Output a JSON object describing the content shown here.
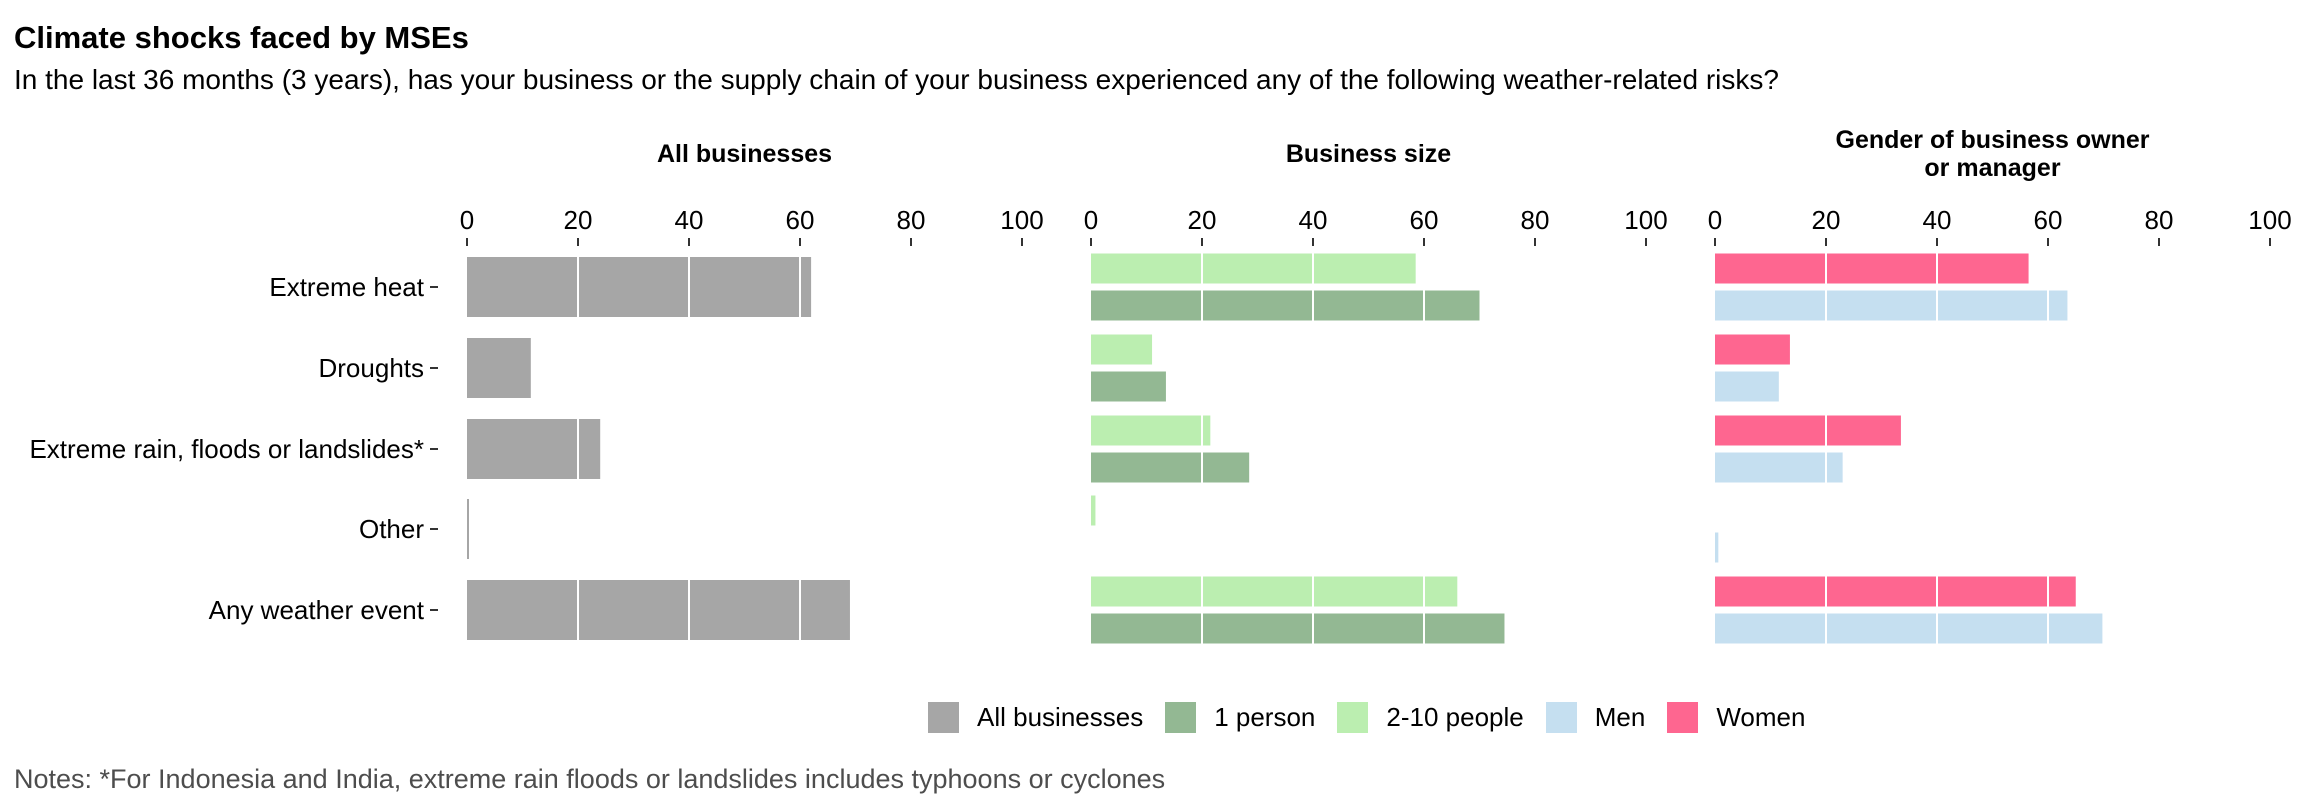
{
  "title": "Climate shocks faced by MSEs",
  "subtitle": "In the last 36 months (3 years), has your business or the supply chain of your business experienced any of the following weather-related risks?",
  "notes": "Notes: *For Indonesia and India, extreme rain floods or landslides includes typhoons or cyclones",
  "legend": [
    {
      "label": "All businesses",
      "color": "#a6a6a6"
    },
    {
      "label": "1 person",
      "color": "#93b893"
    },
    {
      "label": "2-10 people",
      "color": "#bbeeb0"
    },
    {
      "label": "Men",
      "color": "#c5dff0"
    },
    {
      "label": "Women",
      "color": "#fe6690"
    }
  ],
  "chart_data": [
    {
      "type": "bar",
      "orientation": "horizontal",
      "title": "All businesses",
      "categories": [
        "Extreme heat",
        "Droughts",
        "Extreme rain, floods or landslides*",
        "Other",
        "Any weather event"
      ],
      "xlim": [
        0,
        100
      ],
      "xticks": [
        0,
        20,
        40,
        60,
        80,
        100
      ],
      "grid": true,
      "series": [
        {
          "name": "All businesses",
          "color": "#a6a6a6",
          "values": [
            62,
            11.5,
            24,
            0.3,
            69
          ]
        }
      ]
    },
    {
      "type": "bar",
      "orientation": "horizontal",
      "title": "Business size",
      "categories": [
        "Extreme heat",
        "Droughts",
        "Extreme rain, floods or landslides*",
        "Other",
        "Any weather event"
      ],
      "xlim": [
        0,
        100
      ],
      "xticks": [
        0,
        20,
        40,
        60,
        80,
        100
      ],
      "grid": true,
      "series": [
        {
          "name": "2-10 people",
          "color": "#bbeeb0",
          "values": [
            58.5,
            11,
            21.5,
            0.8,
            66
          ]
        },
        {
          "name": "1 person",
          "color": "#93b893",
          "values": [
            70,
            13.5,
            28.5,
            0,
            74.5
          ]
        }
      ]
    },
    {
      "type": "bar",
      "orientation": "horizontal",
      "title": "Gender of business owner\nor manager",
      "categories": [
        "Extreme heat",
        "Droughts",
        "Extreme rain, floods or landslides*",
        "Other",
        "Any weather event"
      ],
      "xlim": [
        0,
        100
      ],
      "xticks": [
        0,
        20,
        40,
        60,
        80,
        100
      ],
      "grid": true,
      "series": [
        {
          "name": "Women",
          "color": "#fe6690",
          "values": [
            56.5,
            13.5,
            33.5,
            0,
            65
          ]
        },
        {
          "name": "Men",
          "color": "#c5dff0",
          "values": [
            63.5,
            11.5,
            23,
            0.6,
            69.8
          ]
        }
      ]
    }
  ]
}
